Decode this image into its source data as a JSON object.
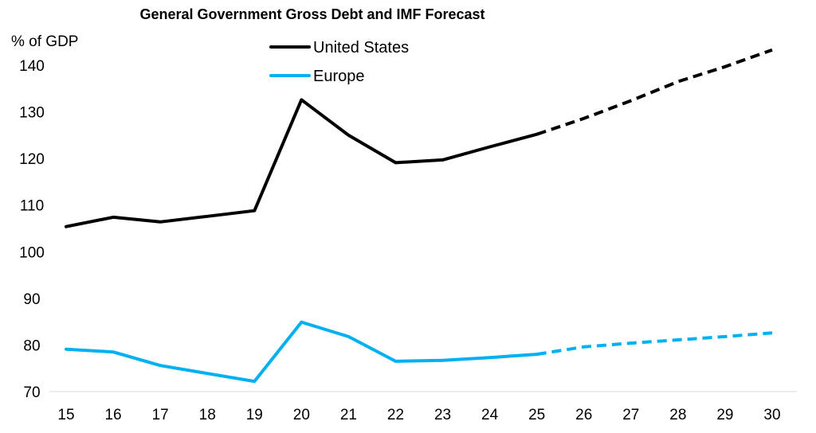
{
  "chart_data": {
    "type": "line",
    "title": "General Government Gross Debt and IMF Forecast",
    "ylabel": "% of GDP",
    "xlabel": "",
    "ylim": [
      70,
      145
    ],
    "yticks": [
      "70",
      "80",
      "90",
      "100",
      "110",
      "120",
      "130",
      "140"
    ],
    "categories": [
      "15",
      "16",
      "17",
      "18",
      "19",
      "20",
      "21",
      "22",
      "23",
      "24",
      "25",
      "26",
      "27",
      "28",
      "29",
      "30"
    ],
    "forecast_start": "25",
    "grid": false,
    "legend": "top-center",
    "series": [
      {
        "name": "United States",
        "color": "#000000",
        "values": [
          105.4,
          107.4,
          106.4,
          107.6,
          108.8,
          132.6,
          125.0,
          119.1,
          119.7,
          122.5,
          125.2,
          128.6,
          132.4,
          136.5,
          139.7,
          143.3
        ]
      },
      {
        "name": "Europe",
        "color": "#00B0F0",
        "values": [
          79.1,
          78.5,
          75.6,
          73.9,
          72.2,
          84.9,
          81.8,
          76.5,
          76.7,
          77.3,
          78.0,
          79.6,
          80.4,
          81.1,
          81.8,
          82.6
        ]
      }
    ]
  }
}
